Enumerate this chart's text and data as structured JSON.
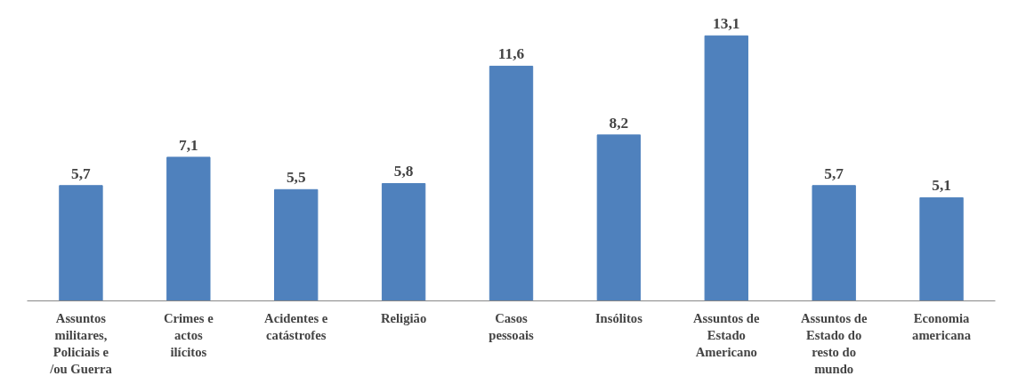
{
  "chart_data": {
    "type": "bar",
    "categories": [
      "Assuntos militares, Policiais e /ou Guerra",
      "Crimes e actos ilícitos",
      "Acidentes e catástrofes",
      "Religião",
      "Casos pessoais",
      "Insólitos",
      "Assuntos de Estado Americano",
      "Assuntos de Estado do resto do mundo",
      "Economia americana"
    ],
    "values": [
      5.7,
      7.1,
      5.5,
      5.8,
      11.6,
      8.2,
      13.1,
      5.7,
      5.1
    ],
    "value_labels": [
      "5,7",
      "7,1",
      "5,5",
      "5,8",
      "11,6",
      "8,2",
      "13,1",
      "5,7",
      "5,1"
    ],
    "color": "#4f81bd",
    "grid": false
  }
}
